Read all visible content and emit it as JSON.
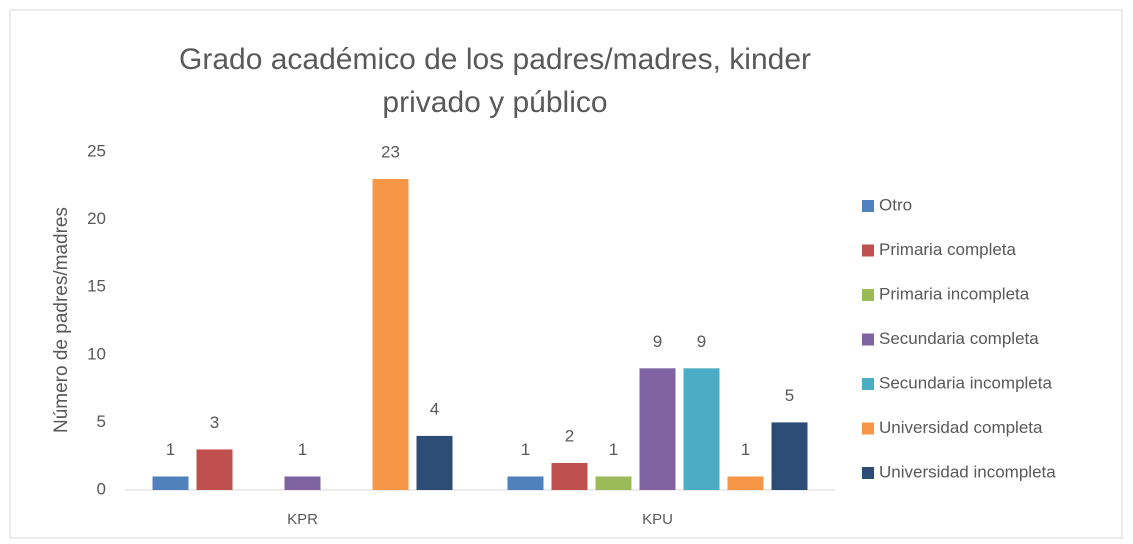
{
  "chart_data": {
    "type": "bar",
    "title": "Grado académico de los padres/madres, kinder privado y público",
    "y_axis_label": "Número de padres/madres",
    "categories": [
      "KPR",
      "KPU"
    ],
    "series": [
      {
        "name": "Otro",
        "color": "#4f81bd",
        "values": [
          1,
          1
        ]
      },
      {
        "name": "Primaria completa",
        "color": "#c0504d",
        "values": [
          3,
          2
        ]
      },
      {
        "name": "Primaria incompleta",
        "color": "#9bbb59",
        "values": [
          null,
          1
        ]
      },
      {
        "name": "Secundaria completa",
        "color": "#8064a2",
        "values": [
          1,
          9
        ]
      },
      {
        "name": "Secundaria incompleta",
        "color": "#4bacc6",
        "values": [
          null,
          9
        ]
      },
      {
        "name": "Universidad completa",
        "color": "#f79646",
        "values": [
          23,
          1
        ]
      },
      {
        "name": "Universidad incompleta",
        "color": "#2c4d75",
        "values": [
          4,
          5
        ]
      }
    ],
    "ylim": [
      0,
      25
    ],
    "yticks": [
      0,
      5,
      10,
      15,
      20,
      25
    ],
    "grid": false,
    "legend": "right"
  }
}
